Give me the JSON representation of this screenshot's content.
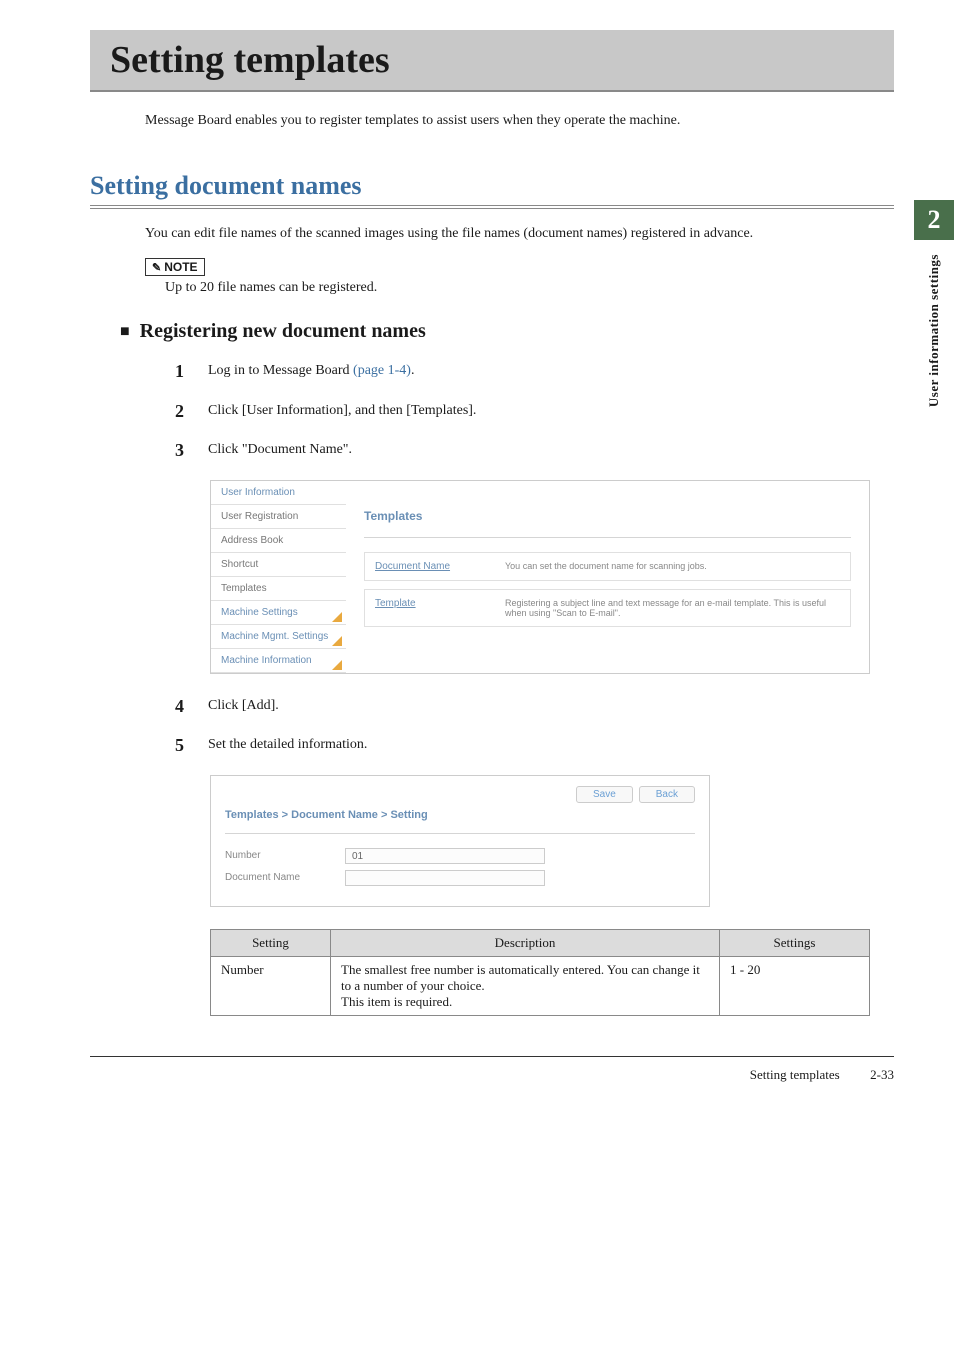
{
  "page": {
    "title": "Setting templates",
    "intro": "Message Board enables you to register templates to assist users when they operate the machine.",
    "section_heading": "Setting document names",
    "section_text": "You can edit file names of the scanned images using the file names (document names) registered in advance.",
    "note_label": "NOTE",
    "note_text": "Up to 20 file names can be registered.",
    "subsection_heading": "Registering new document names",
    "side_tab_number": "2",
    "side_tab_label": "User information settings",
    "footer_label": "Setting templates",
    "footer_page": "2-33"
  },
  "steps": {
    "s1_pre": "Log in to Message Board ",
    "s1_link": "(page 1-4)",
    "s1_post": ".",
    "s2": "Click [User Information], and then [Templates].",
    "s3": "Click \"Document Name\".",
    "s4": "Click [Add].",
    "s5": "Set the detailed information."
  },
  "screenshot1": {
    "sidebar_items": {
      "i0": "User Information",
      "i1": "User Registration",
      "i2": "Address Book",
      "i3": "Shortcut",
      "i4": "Templates",
      "i5": "Machine Settings",
      "i6": "Machine Mgmt. Settings",
      "i7": "Machine Information"
    },
    "main_heading": "Templates",
    "row1_label": "Document Name",
    "row1_desc": "You can set the document name for scanning jobs.",
    "row2_label": "Template",
    "row2_desc": "Registering a subject line and text message for an e-mail template. This is useful when using \"Scan to E-mail\"."
  },
  "screenshot2": {
    "btn_save": "Save",
    "btn_back": "Back",
    "title": "Templates > Document Name > Setting",
    "field1_label": "Number",
    "field1_value": "01",
    "field2_label": "Document Name",
    "field2_value": ""
  },
  "table": {
    "h1": "Setting",
    "h2": "Description",
    "h3": "Settings",
    "r1c1": "Number",
    "r1c2": "The smallest free number is automatically entered.  You can change it to a number of your choice.\nThis item is required.",
    "r1c3": "1 - 20"
  }
}
